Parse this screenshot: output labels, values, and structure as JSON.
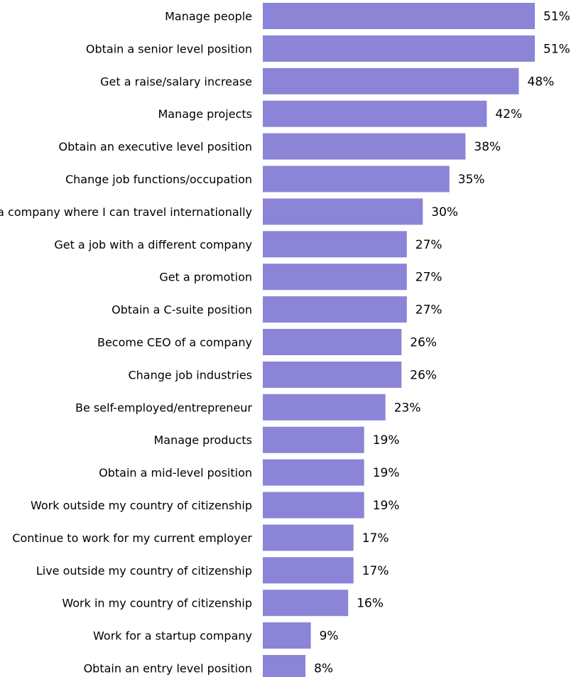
{
  "chart_data": {
    "type": "bar",
    "orientation": "horizontal",
    "categories": [
      "Manage people",
      "Obtain a senior level position",
      "Get a raise/salary increase",
      "Manage projects",
      "Obtain an executive level position",
      "Change job functions/occupation",
      "Work for a company where I can travel internationally",
      "Get a job with a different company",
      "Get a promotion",
      "Obtain a C-suite position",
      "Become CEO of a company",
      "Change job industries",
      "Be self-employed/entrepreneur",
      "Manage products",
      "Obtain a mid-level position",
      "Work outside my country of citizenship",
      "Continue to work for my current employer",
      "Live outside my country of citizenship",
      "Work in my country of citizenship",
      "Work for a startup company",
      "Obtain an entry level position"
    ],
    "values": [
      51,
      51,
      48,
      42,
      38,
      35,
      30,
      27,
      27,
      27,
      26,
      26,
      23,
      19,
      19,
      19,
      17,
      17,
      16,
      9,
      8
    ],
    "value_labels": [
      "51%",
      "51%",
      "48%",
      "42%",
      "38%",
      "35%",
      "30%",
      "27%",
      "27%",
      "27%",
      "26%",
      "26%",
      "23%",
      "19%",
      "19%",
      "19%",
      "17%",
      "17%",
      "16%",
      "9%",
      "8%"
    ],
    "title": "",
    "xlabel": "",
    "ylabel": "",
    "xlim": [
      0,
      51
    ],
    "grid": false,
    "legend": "none",
    "bar_color": "#8b84d7"
  }
}
